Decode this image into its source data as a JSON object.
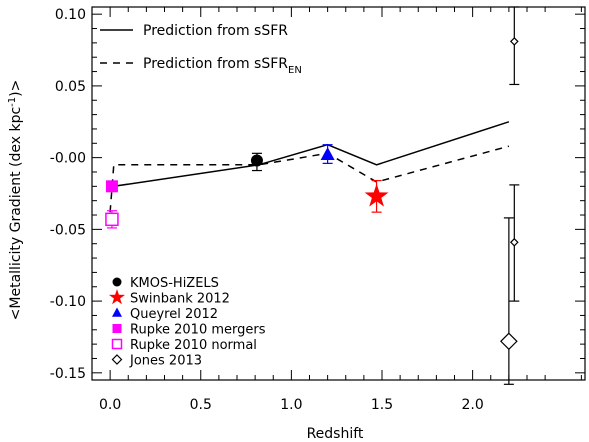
{
  "chart_data": {
    "type": "scatter",
    "title": "",
    "xlabel": "Redshift",
    "ylabel_main": "<Metallicity Gradient (dex kpc",
    "ylabel_sup": "-1",
    "ylabel_end": ")>",
    "xlim": [
      -0.1,
      2.62
    ],
    "ylim": [
      -0.155,
      0.105
    ],
    "xticks": [
      0.0,
      0.5,
      1.0,
      1.5,
      2.0
    ],
    "xtick_labels": [
      "0.0",
      "0.5",
      "1.0",
      "1.5",
      "2.0"
    ],
    "yticks": [
      0.1,
      0.05,
      0.0,
      -0.05,
      -0.1,
      -0.15
    ],
    "ytick_labels": [
      "0.10",
      "0.05",
      "-0.00",
      "-0.05",
      "-0.10",
      "-0.15"
    ],
    "lines": [
      {
        "name": "Prediction from sSFR",
        "name_sub": "",
        "style": "solid",
        "x": [
          0.0,
          0.02,
          0.82,
          1.2,
          1.47,
          2.2
        ],
        "y": [
          -0.02,
          -0.02,
          -0.005,
          0.009,
          -0.005,
          0.025
        ]
      },
      {
        "name": "Prediction from sSFR",
        "name_sub": "EN",
        "style": "dashed",
        "x": [
          0.0,
          0.02,
          0.82,
          1.2,
          1.47,
          2.2
        ],
        "y": [
          -0.038,
          -0.005,
          -0.005,
          0.003,
          -0.017,
          0.008
        ]
      }
    ],
    "series": [
      {
        "name": "KMOS-HiZELS",
        "marker": "filled-circle",
        "color": "#000000",
        "points": [
          {
            "x": 0.81,
            "y": -0.002,
            "yerr_low": 0.007,
            "yerr_high": 0.005,
            "xerr": 0.02
          }
        ]
      },
      {
        "name": "Swinbank 2012",
        "marker": "filled-star",
        "color": "#ff0000",
        "points": [
          {
            "x": 1.47,
            "y": -0.027,
            "yerr_low": 0.011,
            "yerr_high": 0.011
          }
        ]
      },
      {
        "name": "Queyrel 2012",
        "marker": "filled-triangle",
        "color": "#0000ff",
        "points": [
          {
            "x": 1.2,
            "y": 0.002,
            "yerr_low": 0.006,
            "yerr_high": 0.007
          }
        ]
      },
      {
        "name": "Rupke 2010 mergers",
        "marker": "filled-square",
        "color": "#ff00ff",
        "points": [
          {
            "x": 0.01,
            "y": -0.02,
            "yerr_low": 0.003,
            "yerr_high": 0.003
          }
        ]
      },
      {
        "name": "Rupke 2010 normal",
        "marker": "open-square",
        "color": "#ff00ff",
        "points": [
          {
            "x": 0.01,
            "y": -0.043,
            "yerr_low": 0.006,
            "yerr_high": 0.006
          }
        ]
      },
      {
        "name": "Jones 2013",
        "marker": "open-diamond",
        "color": "#000000",
        "points": [
          {
            "x": 2.23,
            "y": 0.081,
            "yerr_low": 0.03,
            "yerr_high": 0.024,
            "size": "small"
          },
          {
            "x": 2.23,
            "y": -0.059,
            "yerr_low": 0.041,
            "yerr_high": 0.04,
            "size": "small"
          },
          {
            "x": 2.2,
            "y": -0.128,
            "yerr_low": 0.03,
            "yerr_high": 0.086,
            "size": "large"
          }
        ]
      }
    ],
    "legend_placement": "bottom-left",
    "line_legend_placement": "top-left",
    "grid": false
  }
}
